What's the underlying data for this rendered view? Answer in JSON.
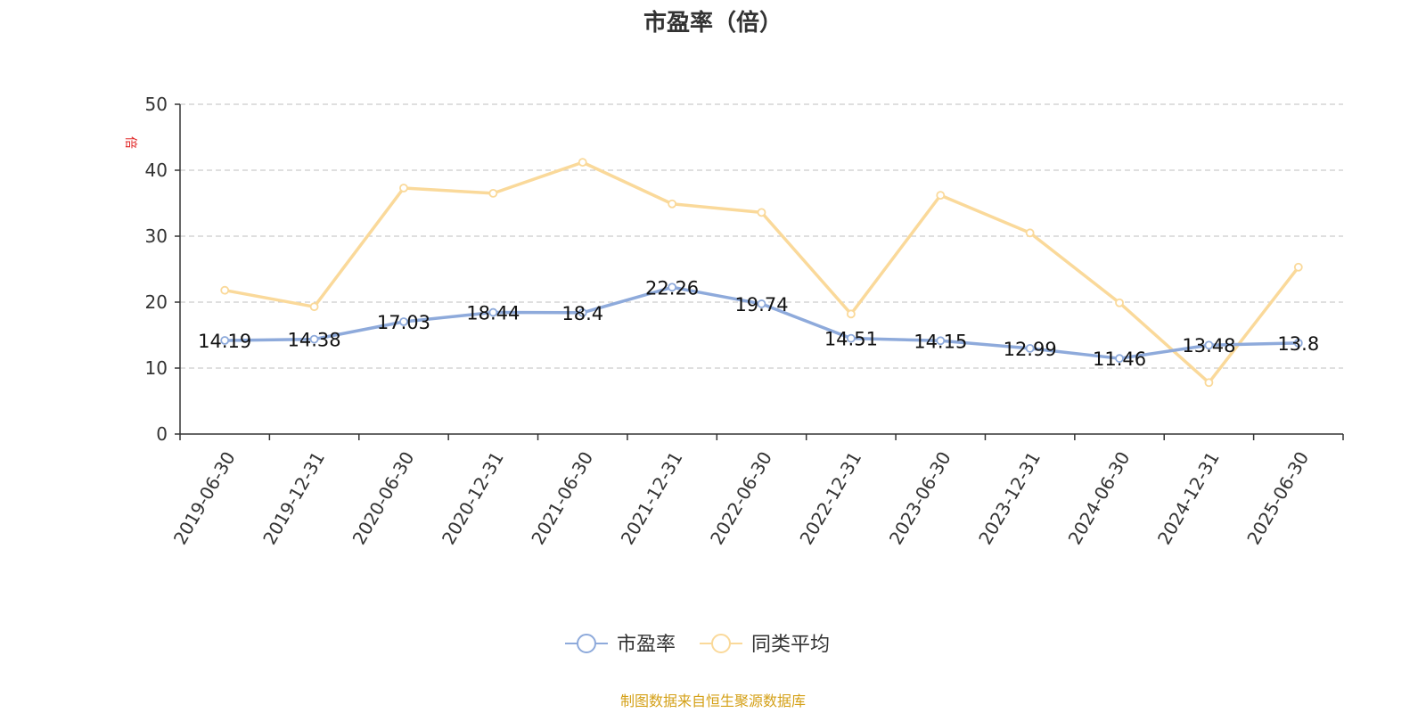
{
  "chart_data": {
    "type": "line",
    "title": "市盈率（倍）",
    "ylabel": "倍",
    "xlabel": "",
    "ylim": [
      0,
      50
    ],
    "yticks": [
      0,
      10,
      20,
      30,
      40,
      50
    ],
    "categories": [
      "2019-06-30",
      "2019-12-31",
      "2020-06-30",
      "2020-12-31",
      "2021-06-30",
      "2021-12-31",
      "2022-06-30",
      "2022-12-31",
      "2023-06-30",
      "2023-12-31",
      "2024-06-30",
      "2024-12-31",
      "2025-06-30"
    ],
    "series": [
      {
        "name": "市盈率",
        "color": "#8eaadb",
        "values": [
          14.19,
          14.38,
          17.03,
          18.44,
          18.4,
          22.26,
          19.74,
          14.51,
          14.15,
          12.99,
          11.46,
          13.48,
          13.8
        ],
        "show_labels": true
      },
      {
        "name": "同类平均",
        "color": "#fad99a",
        "values": [
          21.8,
          19.3,
          37.3,
          36.5,
          41.2,
          34.9,
          33.6,
          18.2,
          36.2,
          30.5,
          19.9,
          7.8,
          25.3
        ],
        "show_labels": false
      }
    ],
    "grid": true,
    "legend": "bottom-center"
  },
  "source_note": "制图数据来自恒生聚源数据库",
  "colors": {
    "axis": "#333333",
    "grid": "#cccccc",
    "unit": "#e02020",
    "source": "#d4a017"
  }
}
